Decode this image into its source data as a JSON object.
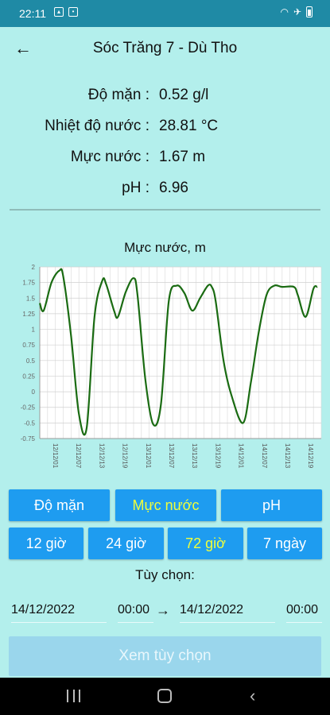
{
  "status_bar": {
    "time": "22:11"
  },
  "header": {
    "title": "Sóc Trăng 7 - Dù Tho",
    "back_icon": "←"
  },
  "readings": [
    {
      "label": "Độ mặn :",
      "value": "0.52 g/l"
    },
    {
      "label": "Nhiệt độ nước :",
      "value": "28.81 °C"
    },
    {
      "label": "Mực nước :",
      "value": "1.67 m"
    },
    {
      "label": "pH :",
      "value": "6.96"
    }
  ],
  "metric_tabs": [
    {
      "label": "Độ mặn",
      "active": false
    },
    {
      "label": "Mực nước",
      "active": true
    },
    {
      "label": "pH",
      "active": false
    }
  ],
  "range_tabs": [
    {
      "label": "12 giờ",
      "active": false
    },
    {
      "label": "24 giờ",
      "active": false
    },
    {
      "label": "72 giờ",
      "active": true
    },
    {
      "label": "7 ngày",
      "active": false
    }
  ],
  "custom": {
    "label": "Tùy chọn:",
    "from_date": "14/12/2022",
    "from_time": "00:00",
    "arrow": "→",
    "to_date": "14/12/2022",
    "to_time": "00:00",
    "view_button": "Xem tùy chọn"
  },
  "chart_data": {
    "type": "line",
    "title": "Mực nước, m",
    "ylim": [
      -0.75,
      2
    ],
    "y_ticks": [
      "2",
      "1.75",
      "1.5",
      "1.25",
      "1",
      "0.75",
      "0.5",
      "0.25",
      "0",
      "-0.25",
      "-0.5",
      "-0.75"
    ],
    "x_tick_labels": [
      "12/12 01",
      "12/12 07",
      "12/12 13",
      "12/12 19",
      "13/12 01",
      "13/12 07",
      "13/12 13",
      "13/12 19",
      "14/12 01",
      "14/12 07",
      "14/12 13",
      "14/12 19"
    ],
    "x_tick_labels_shown": [
      "12/12/01",
      "12/12/07",
      "12/12/13",
      "12/12/19",
      "13/12/01",
      "13/12/07",
      "13/12/13",
      "13/12/19",
      "14/12/01",
      "14/12/07",
      "14/12/13",
      "14/12/19"
    ],
    "series": [
      {
        "color": "#1a6b12",
        "x_hours": [
          0,
          1,
          3,
          5,
          6,
          8,
          10,
          12,
          14,
          16,
          17,
          19,
          20,
          22,
          24,
          25,
          27,
          29,
          31,
          33,
          35,
          37,
          39,
          41,
          43,
          44,
          45,
          47,
          49,
          52,
          54,
          56,
          58,
          60,
          62,
          65,
          66,
          68,
          70,
          71
        ],
        "values": [
          1.42,
          1.3,
          1.75,
          1.94,
          1.85,
          0.9,
          -0.35,
          -0.58,
          1.2,
          1.78,
          1.72,
          1.3,
          1.2,
          1.6,
          1.82,
          1.55,
          0.2,
          -0.52,
          -0.2,
          1.45,
          1.7,
          1.58,
          1.3,
          1.5,
          1.7,
          1.68,
          1.45,
          0.5,
          -0.05,
          -0.5,
          0.15,
          0.95,
          1.55,
          1.7,
          1.68,
          1.68,
          1.55,
          1.2,
          1.65,
          1.68
        ]
      }
    ],
    "grid": true
  }
}
